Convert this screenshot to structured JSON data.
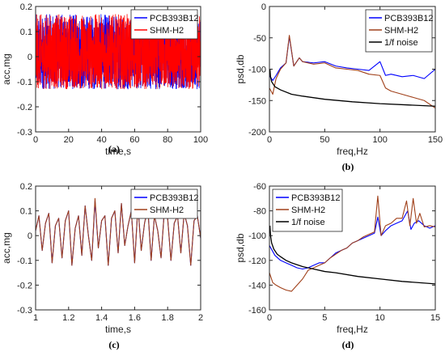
{
  "chart_data": [
    {
      "id": "a",
      "type": "line",
      "caption": "(a)",
      "xlabel": "time,s",
      "ylabel": "acc,mg",
      "xlim": [
        0,
        100
      ],
      "ylim": [
        -0.3,
        0.2
      ],
      "xticks": [
        0,
        20,
        40,
        60,
        80,
        100
      ],
      "yticks": [
        -0.3,
        -0.2,
        -0.1,
        0,
        0.1,
        0.2
      ],
      "xtick_labels": [
        "0",
        "20",
        "40",
        "60",
        "80",
        "100"
      ],
      "ytick_labels": [
        "-0.3",
        "-0.2",
        "-0.1",
        "0",
        "0.1",
        "0.2"
      ],
      "legend_position": "top-right",
      "series": [
        {
          "name": "PCB393B12",
          "color": "#0000ff",
          "envelope": [
            -0.13,
            0.17
          ]
        },
        {
          "name": "SHM-H2",
          "color": "#ff0000",
          "envelope": [
            -0.13,
            0.17
          ]
        }
      ]
    },
    {
      "id": "b",
      "type": "line",
      "caption": "(b)",
      "xlabel": "freq,Hz",
      "ylabel": "psd,db",
      "xlim": [
        0,
        150
      ],
      "ylim": [
        -200,
        0
      ],
      "xticks": [
        0,
        50,
        100,
        150
      ],
      "yticks": [
        -200,
        -150,
        -100,
        -50,
        0
      ],
      "xtick_labels": [
        "0",
        "50",
        "100",
        "150"
      ],
      "ytick_labels": [
        "-200",
        "-150",
        "-100",
        "-50",
        "0"
      ],
      "legend_position": "top-right",
      "series": [
        {
          "name": "PCB393B12",
          "color": "#0000ff",
          "x": [
            0,
            3,
            6,
            10,
            15,
            18,
            22,
            27,
            30,
            40,
            50,
            60,
            70,
            80,
            90,
            100,
            105,
            110,
            120,
            130,
            140,
            150
          ],
          "y": [
            -110,
            -118,
            -110,
            -98,
            -90,
            -48,
            -95,
            -82,
            -88,
            -90,
            -88,
            -95,
            -98,
            -100,
            -102,
            -88,
            -110,
            -108,
            -112,
            -110,
            -115,
            -100
          ]
        },
        {
          "name": "SHM-H2",
          "color": "#a0401a",
          "x": [
            0,
            3,
            6,
            10,
            15,
            18,
            22,
            27,
            30,
            40,
            50,
            60,
            70,
            80,
            90,
            100,
            105,
            110,
            120,
            130,
            140,
            150
          ],
          "y": [
            -130,
            -140,
            -115,
            -100,
            -90,
            -46,
            -95,
            -82,
            -88,
            -92,
            -90,
            -98,
            -100,
            -102,
            -108,
            -110,
            -130,
            -135,
            -140,
            -145,
            -150,
            -162
          ]
        },
        {
          "name": "1/f noise",
          "color": "#000000",
          "x": [
            0.5,
            1,
            2,
            5,
            10,
            20,
            30,
            50,
            75,
            100,
            125,
            150
          ],
          "y": [
            -100,
            -112,
            -120,
            -128,
            -133,
            -140,
            -143,
            -148,
            -152,
            -155,
            -157,
            -159
          ]
        }
      ]
    },
    {
      "id": "c",
      "type": "line",
      "caption": "(c)",
      "xlabel": "time,s",
      "ylabel": "acc,mg",
      "xlim": [
        1,
        2
      ],
      "ylim": [
        -0.3,
        0.2
      ],
      "xticks": [
        1,
        1.2,
        1.4,
        1.6,
        1.8,
        2
      ],
      "yticks": [
        -0.3,
        -0.2,
        -0.1,
        0,
        0.1,
        0.2
      ],
      "xtick_labels": [
        "1",
        "1.2",
        "1.4",
        "1.6",
        "1.8",
        "2"
      ],
      "ytick_labels": [
        "-0.3",
        "-0.2",
        "-0.1",
        "0",
        "0.1",
        "0.2"
      ],
      "legend_position": "top-right",
      "series": [
        {
          "name": "PCB393B12",
          "color": "#0000ff",
          "x": [
            1,
            1.02,
            1.04,
            1.06,
            1.08,
            1.1,
            1.12,
            1.14,
            1.16,
            1.18,
            1.2,
            1.22,
            1.24,
            1.26,
            1.28,
            1.3,
            1.32,
            1.34,
            1.36,
            1.38,
            1.4,
            1.42,
            1.44,
            1.46,
            1.48,
            1.5,
            1.52,
            1.54,
            1.56,
            1.58,
            1.6,
            1.62,
            1.64,
            1.66,
            1.68,
            1.7,
            1.72,
            1.74,
            1.76,
            1.78,
            1.8,
            1.82,
            1.84,
            1.86,
            1.88,
            1.9,
            1.92,
            1.94,
            1.96,
            1.98,
            2
          ],
          "y": [
            0.02,
            0.08,
            -0.06,
            0.05,
            0.09,
            -0.11,
            0.04,
            0.07,
            -0.09,
            0.06,
            0.1,
            -0.12,
            0.03,
            0.08,
            -0.08,
            0.12,
            0.0,
            -0.1,
            0.14,
            -0.05,
            0.06,
            0.08,
            -0.12,
            0.07,
            0.1,
            -0.07,
            0.13,
            -0.04,
            0.04,
            0.1,
            -0.11,
            0.12,
            -0.06,
            0.05,
            0.11,
            -0.1,
            0.08,
            0.02,
            -0.09,
            0.1,
            0.07,
            -0.1,
            0.05,
            0.08,
            -0.07,
            0.09,
            0.04,
            -0.12,
            0.06,
            0.08,
            -0.01
          ]
        },
        {
          "name": "SHM-H2",
          "color": "#a0401a",
          "x": [
            1,
            1.02,
            1.04,
            1.06,
            1.08,
            1.1,
            1.12,
            1.14,
            1.16,
            1.18,
            1.2,
            1.22,
            1.24,
            1.26,
            1.28,
            1.3,
            1.32,
            1.34,
            1.36,
            1.38,
            1.4,
            1.42,
            1.44,
            1.46,
            1.48,
            1.5,
            1.52,
            1.54,
            1.56,
            1.58,
            1.6,
            1.62,
            1.64,
            1.66,
            1.68,
            1.7,
            1.72,
            1.74,
            1.76,
            1.78,
            1.8,
            1.82,
            1.84,
            1.86,
            1.88,
            1.9,
            1.92,
            1.94,
            1.96,
            1.98,
            2
          ],
          "y": [
            0.02,
            0.08,
            -0.06,
            0.05,
            0.09,
            -0.11,
            0.04,
            0.07,
            -0.09,
            0.06,
            0.1,
            -0.12,
            0.03,
            0.08,
            -0.08,
            0.12,
            0.0,
            -0.1,
            0.15,
            -0.05,
            0.06,
            0.08,
            -0.12,
            0.07,
            0.1,
            -0.07,
            0.13,
            -0.04,
            0.04,
            0.1,
            -0.11,
            0.12,
            -0.06,
            0.05,
            0.11,
            -0.1,
            0.08,
            0.02,
            -0.09,
            0.1,
            0.07,
            -0.1,
            0.05,
            0.08,
            -0.07,
            0.09,
            0.04,
            -0.12,
            0.06,
            0.08,
            -0.01
          ]
        }
      ]
    },
    {
      "id": "d",
      "type": "line",
      "caption": "(d)",
      "xlabel": "freq,Hz",
      "ylabel": "psd,db",
      "xlim": [
        0,
        15
      ],
      "ylim": [
        -160,
        -60
      ],
      "xticks": [
        0,
        5,
        10,
        15
      ],
      "yticks": [
        -160,
        -140,
        -120,
        -100,
        -80,
        -60
      ],
      "xtick_labels": [
        "0",
        "5",
        "10",
        "15"
      ],
      "ytick_labels": [
        "-160",
        "-140",
        "-120",
        "-100",
        "-80",
        "-60"
      ],
      "legend_position": "top-left",
      "series": [
        {
          "name": "PCB393B12",
          "color": "#0000ff",
          "x": [
            0,
            0.5,
            1,
            1.5,
            2,
            2.5,
            3,
            3.5,
            4,
            4.5,
            5,
            5.5,
            6,
            6.5,
            7,
            7.5,
            8,
            8.5,
            9,
            9.5,
            9.8,
            10.1,
            10.5,
            11,
            11.5,
            12,
            12.5,
            12.8,
            13.1,
            13.5,
            14,
            14.5,
            15
          ],
          "y": [
            -108,
            -116,
            -120,
            -122,
            -124,
            -126,
            -127,
            -126,
            -124,
            -122,
            -122,
            -118,
            -114,
            -112,
            -110,
            -106,
            -104,
            -102,
            -100,
            -98,
            -85,
            -100,
            -96,
            -92,
            -90,
            -88,
            -80,
            -95,
            -90,
            -88,
            -92,
            -94,
            -92
          ]
        },
        {
          "name": "SHM-H2",
          "color": "#a0401a",
          "x": [
            0,
            0.3,
            0.6,
            1,
            1.5,
            2,
            2.5,
            3,
            3.5,
            4,
            4.5,
            5,
            5.5,
            6,
            6.5,
            7,
            7.5,
            8,
            8.5,
            9,
            9.5,
            9.8,
            10.1,
            10.5,
            11,
            11.5,
            12,
            12.4,
            12.7,
            13,
            13.3,
            13.6,
            14,
            14.5,
            15
          ],
          "y": [
            -130,
            -138,
            -140,
            -142,
            -144,
            -145,
            -140,
            -135,
            -128,
            -126,
            -124,
            -122,
            -118,
            -115,
            -112,
            -110,
            -106,
            -104,
            -101,
            -99,
            -97,
            -68,
            -100,
            -92,
            -90,
            -86,
            -86,
            -72,
            -92,
            -70,
            -90,
            -82,
            -93,
            -92,
            -93
          ]
        },
        {
          "name": "1/f noise",
          "color": "#000000",
          "x": [
            0.05,
            0.1,
            0.2,
            0.4,
            0.7,
            1,
            1.5,
            2,
            3,
            4,
            5,
            6,
            8,
            10,
            12,
            15
          ],
          "y": [
            -92,
            -100,
            -106,
            -111,
            -115,
            -117,
            -120,
            -122,
            -125,
            -127,
            -129,
            -130,
            -133,
            -135,
            -137,
            -139
          ]
        }
      ]
    }
  ]
}
